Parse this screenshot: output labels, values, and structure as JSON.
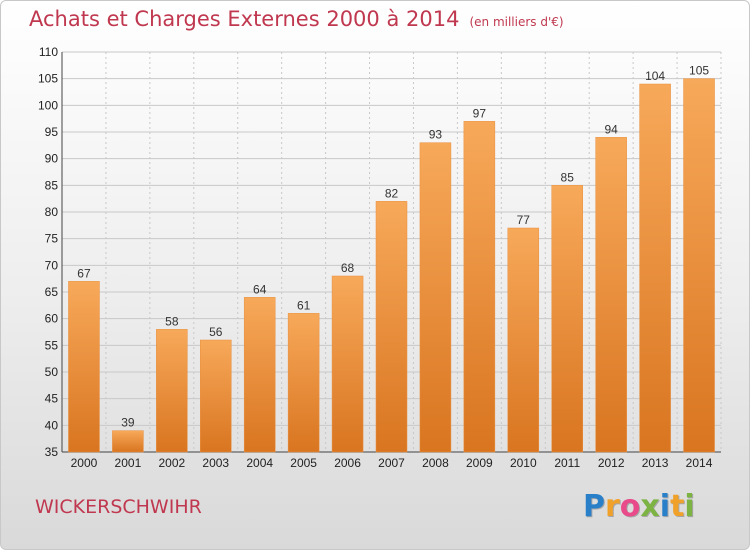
{
  "header": {
    "title": "Achats et Charges Externes 2000 à 2014",
    "subtitle": "(en milliers d'€)"
  },
  "footer": {
    "place": "WICKERSCHWIHR",
    "logo_letters": [
      "P",
      "r",
      "o",
      "x",
      "i",
      "t",
      "i"
    ],
    "logo_colors": [
      "#2a7fc9",
      "#f0a12a",
      "#e84a8a",
      "#7cb342",
      "#2a7fc9",
      "#f0a12a",
      "#7cb342"
    ]
  },
  "colors": {
    "bar_light": "#f7a95a",
    "bar_dark": "#d97520",
    "grid": "#c8c8c8",
    "title": "#c0384f"
  },
  "chart_data": {
    "type": "bar",
    "title": "Achats et Charges Externes 2000 à 2014",
    "subtitle": "(en milliers d'€)",
    "categories": [
      "2000",
      "2001",
      "2002",
      "2003",
      "2004",
      "2005",
      "2006",
      "2007",
      "2008",
      "2009",
      "2010",
      "2011",
      "2012",
      "2013",
      "2014"
    ],
    "values": [
      67,
      39,
      58,
      56,
      64,
      61,
      68,
      82,
      93,
      97,
      77,
      85,
      94,
      104,
      105
    ],
    "ylim": [
      35,
      110
    ],
    "yticks": [
      35,
      40,
      45,
      50,
      55,
      60,
      65,
      70,
      75,
      80,
      85,
      90,
      95,
      100,
      105,
      110
    ],
    "grid": true,
    "data_labels": true
  }
}
